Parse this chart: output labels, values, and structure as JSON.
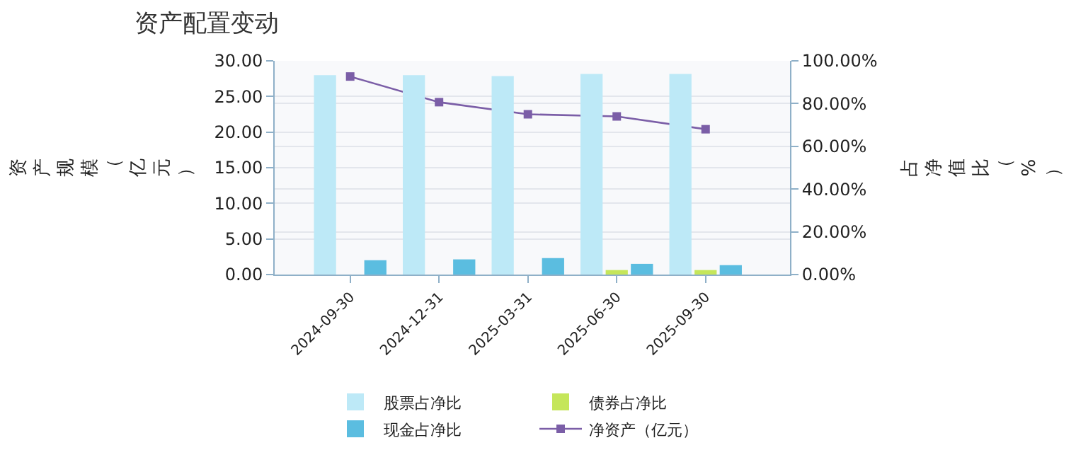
{
  "chart_data": {
    "type": "bar",
    "title": "资产配置变动",
    "ylabel": "资产规模（亿元）",
    "y2label": "占净值比（%）",
    "categories": [
      "2024-09-30",
      "2024-12-31",
      "2025-03-31",
      "2025-06-30",
      "2025-09-30"
    ],
    "series": [
      {
        "name": "股票占净比",
        "axis": "y2",
        "color": "#bde9f7",
        "values": [
          93.3,
          93.3,
          92.9,
          93.9,
          93.9
        ]
      },
      {
        "name": "债券占净比",
        "axis": "y2",
        "color": "#c5e65a",
        "values": [
          0,
          0,
          0,
          2.1,
          2.1
        ]
      },
      {
        "name": "现金占净比",
        "axis": "y2",
        "color": "#5bbde0",
        "values": [
          6.7,
          7.1,
          7.7,
          5.0,
          4.4
        ]
      },
      {
        "name": "净资产（亿元）",
        "type": "line",
        "axis": "y",
        "color": "#7b5ea7",
        "values": [
          27.8,
          24.2,
          22.5,
          22.2,
          20.4
        ]
      }
    ],
    "ylim": [
      0,
      30
    ],
    "yticks": [
      {
        "value": 0,
        "label": "0.00"
      },
      {
        "value": 5,
        "label": "5.00"
      },
      {
        "value": 10,
        "label": "10.00"
      },
      {
        "value": 15,
        "label": "15.00"
      },
      {
        "value": 20,
        "label": "20.00"
      },
      {
        "value": 25,
        "label": "25.00"
      },
      {
        "value": 30,
        "label": "30.00"
      }
    ],
    "y2lim": [
      0,
      100
    ],
    "y2ticks": [
      {
        "value": 0,
        "label": "0.00%"
      },
      {
        "value": 20,
        "label": "20.00%"
      },
      {
        "value": 40,
        "label": "40.00%"
      },
      {
        "value": 60,
        "label": "60.00%"
      },
      {
        "value": 80,
        "label": "80.00%"
      },
      {
        "value": 100,
        "label": "100.00%"
      }
    ],
    "grid": "y",
    "legend": "bottom",
    "marker": "square"
  }
}
